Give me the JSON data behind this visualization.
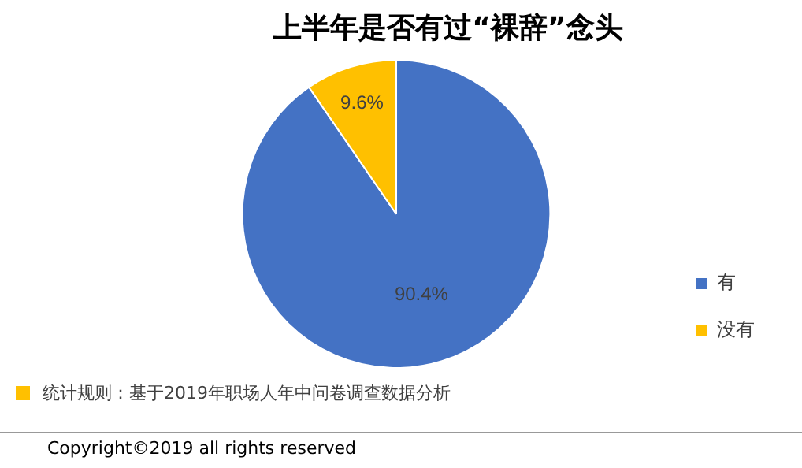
{
  "chart_data": {
    "type": "pie",
    "title": "上半年是否有过“裸辞”念头",
    "categories": [
      "有",
      "没有"
    ],
    "values": [
      90.4,
      9.6
    ],
    "colors": [
      "#4472c4",
      "#ffc000"
    ],
    "value_labels": [
      "90.4%",
      "9.6%"
    ],
    "legend": "right",
    "annotations": [
      "统计规则：基于2019年职场人年中问卷调查数据分析",
      "Copyright©2019 all rights reserved"
    ]
  }
}
